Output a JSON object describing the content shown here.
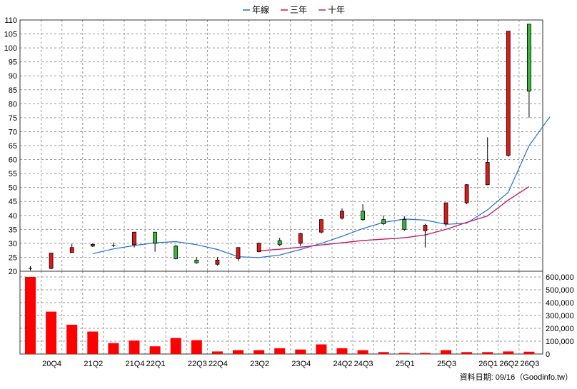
{
  "chart_data": {
    "type": "candlestick",
    "legend": {
      "position": "top-center",
      "items": [
        {
          "label": "年線",
          "color": "#1f6fd1"
        },
        {
          "label": "三年",
          "color": "#e0102e"
        },
        {
          "label": "十年",
          "color": "#c01e6e"
        }
      ]
    },
    "price_axis": {
      "min": 20,
      "max": 110,
      "ticks": [
        20,
        25,
        30,
        35,
        40,
        45,
        50,
        55,
        60,
        65,
        70,
        75,
        80,
        85,
        90,
        95,
        100,
        105,
        110
      ]
    },
    "volume_axis": {
      "min": 0,
      "max": 600000,
      "ticks": [
        "0",
        "100,000",
        "200,000",
        "300,000",
        "400,000",
        "500,000",
        "600,000"
      ]
    },
    "x_labels": [
      "20Q4",
      "21Q2",
      "21Q4",
      "22Q1",
      "22Q3",
      "22Q4",
      "23Q2",
      "23Q4",
      "24Q2",
      "24Q3",
      "25Q1",
      "25Q3",
      "26Q1",
      "26Q2",
      "26Q3"
    ],
    "x_label_slots": [
      1,
      3,
      5,
      6,
      8,
      9,
      11,
      13,
      15,
      16,
      18,
      20,
      22,
      23,
      24
    ],
    "candles": [
      {
        "open": 21,
        "close": 21,
        "high": 21.8,
        "low": 20.3,
        "color": "black"
      },
      {
        "open": 21,
        "close": 26.5,
        "high": 26.5,
        "low": 20.7,
        "color": "red"
      },
      {
        "open": 26.7,
        "close": 28.5,
        "high": 29.8,
        "low": 26.5,
        "color": "red"
      },
      {
        "open": 29,
        "close": 29.6,
        "high": 30,
        "low": 28.7,
        "color": "red"
      },
      {
        "open": 29.3,
        "close": 29.3,
        "high": 30.3,
        "low": 28.6,
        "color": "black"
      },
      {
        "open": 29.5,
        "close": 34,
        "high": 34,
        "low": 28.5,
        "color": "red"
      },
      {
        "open": 34,
        "close": 30,
        "high": 34,
        "low": 27,
        "color": "green"
      },
      {
        "open": 29,
        "close": 24.5,
        "high": 29.5,
        "low": 24.2,
        "color": "green"
      },
      {
        "open": 24,
        "close": 23,
        "high": 25,
        "low": 22.7,
        "color": "green"
      },
      {
        "open": 22.5,
        "close": 24,
        "high": 25,
        "low": 22,
        "color": "red"
      },
      {
        "open": 24.5,
        "close": 28.5,
        "high": 28.5,
        "low": 23.7,
        "color": "red"
      },
      {
        "open": 27,
        "close": 30,
        "high": 30.3,
        "low": 26.8,
        "color": "red"
      },
      {
        "open": 31,
        "close": 29.5,
        "high": 32,
        "low": 29,
        "color": "green"
      },
      {
        "open": 30,
        "close": 33.5,
        "high": 33.8,
        "low": 29,
        "color": "red"
      },
      {
        "open": 34,
        "close": 38.5,
        "high": 38.5,
        "low": 33.5,
        "color": "red"
      },
      {
        "open": 39,
        "close": 41.5,
        "high": 42.5,
        "low": 38.5,
        "color": "red"
      },
      {
        "open": 41.5,
        "close": 38.5,
        "high": 44,
        "low": 38,
        "color": "green"
      },
      {
        "open": 38.5,
        "close": 37,
        "high": 40,
        "low": 36.5,
        "color": "green"
      },
      {
        "open": 38.5,
        "close": 35,
        "high": 39.7,
        "low": 34.5,
        "color": "green"
      },
      {
        "open": 34.5,
        "close": 36.5,
        "high": 37,
        "low": 28.5,
        "color": "red"
      },
      {
        "open": 37,
        "close": 44.5,
        "high": 44.5,
        "low": 36,
        "color": "red"
      },
      {
        "open": 44.5,
        "close": 51,
        "high": 51.2,
        "low": 44,
        "color": "red"
      },
      {
        "open": 51,
        "close": 59,
        "high": 68,
        "low": 50.8,
        "color": "red"
      },
      {
        "open": 61.5,
        "close": 106,
        "high": 106,
        "low": 61,
        "color": "red"
      },
      {
        "open": 108.5,
        "close": 84.5,
        "high": 108.5,
        "low": 75,
        "color": "green"
      }
    ],
    "series": [
      {
        "name": "年線",
        "start_slot": 3,
        "values": [
          26.3,
          28,
          29.2,
          30.2,
          30.6,
          29.5,
          27.8,
          25.2,
          24.9,
          25.8,
          27.8,
          30,
          32.5,
          35.3,
          37.5,
          38.7,
          38.3,
          36.8,
          37.2,
          42,
          48.3,
          65,
          75.3
        ]
      },
      {
        "name": "三年",
        "start_slot": 11,
        "values": [
          27.3,
          27.9,
          28.6,
          29.4,
          30.2,
          31.0,
          31.5,
          32.0,
          33.0,
          35.0,
          37.5,
          39.8,
          45.5,
          50.3
        ]
      },
      {
        "name": "十年",
        "start_slot": 11,
        "values": [
          27.3,
          27.9,
          28.6,
          29.4,
          30.2,
          31.0,
          31.5,
          32.0,
          33.0,
          35.0,
          37.5,
          39.8,
          45.5,
          50.3
        ]
      }
    ],
    "volume": [
      600000,
      330000,
      228000,
      175000,
      85000,
      105000,
      60000,
      125000,
      108000,
      20000,
      30000,
      30000,
      45000,
      35000,
      75000,
      45000,
      30000,
      15000,
      8000,
      8000,
      30000,
      15000,
      15000,
      20000,
      18000
    ],
    "footer_note": "資料日期: 09/16（Goodinfo.tw）"
  }
}
